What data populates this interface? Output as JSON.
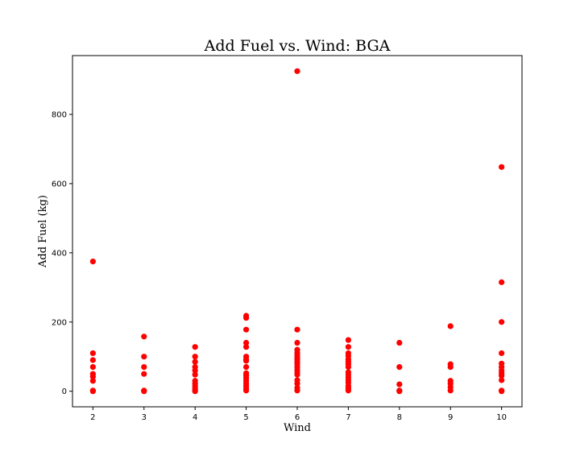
{
  "chart_data": {
    "type": "scatter",
    "title": "Add Fuel vs. Wind: BGA",
    "xlabel": "Wind",
    "ylabel": "Add Fuel (kg)",
    "xlim": [
      1.6,
      10.4
    ],
    "ylim": [
      -45,
      970
    ],
    "xticks": [
      2,
      3,
      4,
      5,
      6,
      7,
      8,
      9,
      10
    ],
    "yticks": [
      0,
      200,
      400,
      600,
      800
    ],
    "grid": false,
    "marker_color": "#ff0000",
    "points": [
      [
        2,
        375
      ],
      [
        2,
        110
      ],
      [
        2,
        90
      ],
      [
        2,
        70
      ],
      [
        2,
        50
      ],
      [
        2,
        42
      ],
      [
        2,
        30
      ],
      [
        2,
        2
      ],
      [
        2,
        0
      ],
      [
        3,
        158
      ],
      [
        3,
        100
      ],
      [
        3,
        70
      ],
      [
        3,
        50
      ],
      [
        3,
        2
      ],
      [
        3,
        0
      ],
      [
        4,
        128
      ],
      [
        4,
        100
      ],
      [
        4,
        85
      ],
      [
        4,
        70
      ],
      [
        4,
        60
      ],
      [
        4,
        48
      ],
      [
        4,
        30
      ],
      [
        4,
        22
      ],
      [
        4,
        15
      ],
      [
        4,
        8
      ],
      [
        4,
        2
      ],
      [
        4,
        0
      ],
      [
        5,
        218
      ],
      [
        5,
        212
      ],
      [
        5,
        178
      ],
      [
        5,
        140
      ],
      [
        5,
        128
      ],
      [
        5,
        100
      ],
      [
        5,
        92
      ],
      [
        5,
        88
      ],
      [
        5,
        70
      ],
      [
        5,
        52
      ],
      [
        5,
        45
      ],
      [
        5,
        38
      ],
      [
        5,
        30
      ],
      [
        5,
        22
      ],
      [
        5,
        15
      ],
      [
        5,
        8
      ],
      [
        5,
        2
      ],
      [
        6,
        925
      ],
      [
        6,
        178
      ],
      [
        6,
        140
      ],
      [
        6,
        120
      ],
      [
        6,
        112
      ],
      [
        6,
        105
      ],
      [
        6,
        98
      ],
      [
        6,
        92
      ],
      [
        6,
        85
      ],
      [
        6,
        78
      ],
      [
        6,
        70
      ],
      [
        6,
        62
      ],
      [
        6,
        55
      ],
      [
        6,
        48
      ],
      [
        6,
        32
      ],
      [
        6,
        22
      ],
      [
        6,
        10
      ],
      [
        6,
        2
      ],
      [
        7,
        148
      ],
      [
        7,
        128
      ],
      [
        7,
        110
      ],
      [
        7,
        102
      ],
      [
        7,
        92
      ],
      [
        7,
        85
      ],
      [
        7,
        78
      ],
      [
        7,
        70
      ],
      [
        7,
        55
      ],
      [
        7,
        48
      ],
      [
        7,
        40
      ],
      [
        7,
        32
      ],
      [
        7,
        25
      ],
      [
        7,
        15
      ],
      [
        7,
        8
      ],
      [
        7,
        2
      ],
      [
        8,
        140
      ],
      [
        8,
        70
      ],
      [
        8,
        20
      ],
      [
        8,
        2
      ],
      [
        8,
        0
      ],
      [
        9,
        188
      ],
      [
        9,
        78
      ],
      [
        9,
        70
      ],
      [
        9,
        30
      ],
      [
        9,
        22
      ],
      [
        9,
        12
      ],
      [
        9,
        2
      ],
      [
        10,
        648
      ],
      [
        10,
        315
      ],
      [
        10,
        200
      ],
      [
        10,
        110
      ],
      [
        10,
        80
      ],
      [
        10,
        70
      ],
      [
        10,
        60
      ],
      [
        10,
        52
      ],
      [
        10,
        45
      ],
      [
        10,
        32
      ],
      [
        10,
        2
      ],
      [
        10,
        0
      ]
    ]
  }
}
